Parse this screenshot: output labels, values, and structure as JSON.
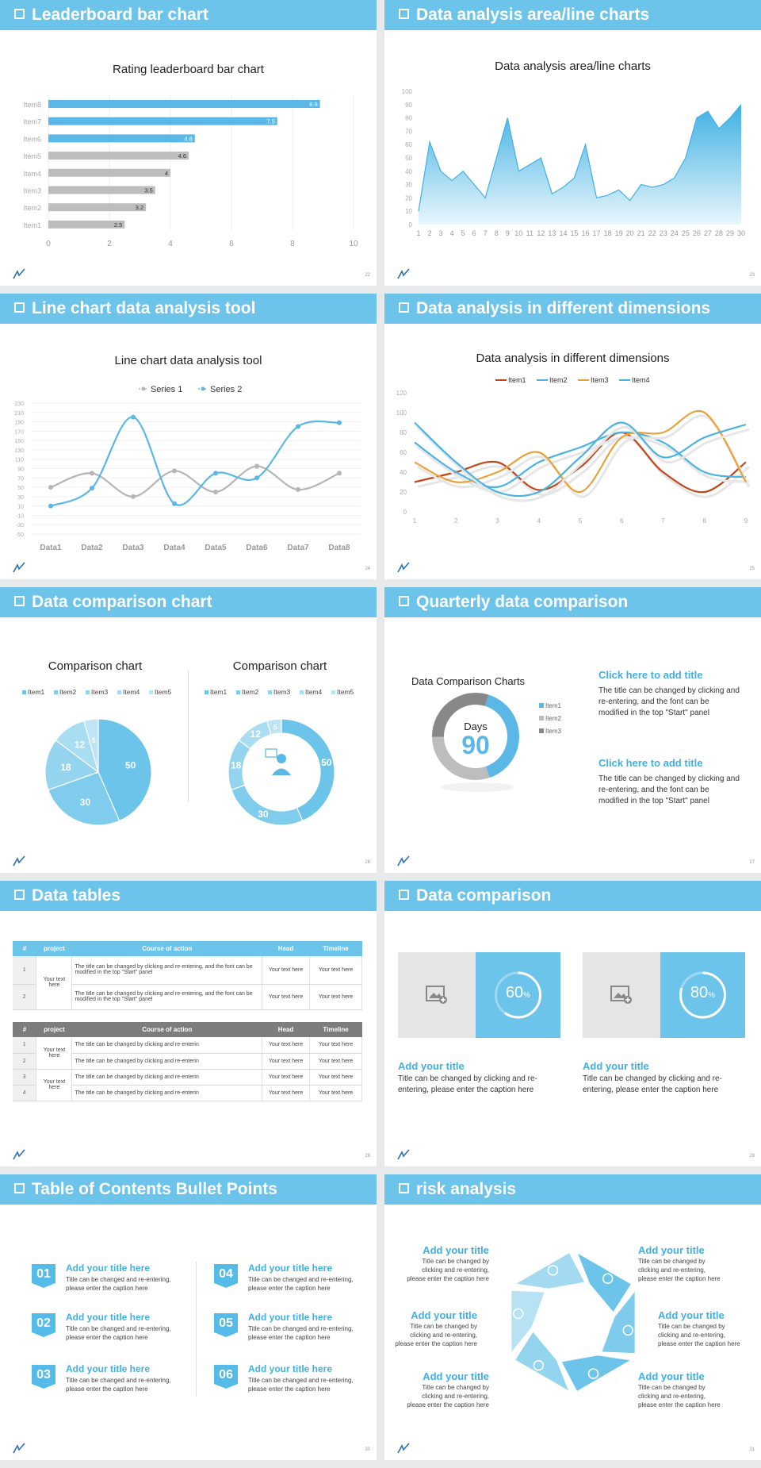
{
  "slides": {
    "s1": {
      "title": "Leaderboard bar chart",
      "page": "22"
    },
    "s2": {
      "title": "Data analysis area/line charts",
      "page": "23"
    },
    "s3": {
      "title": "Line chart data analysis tool",
      "page": "24"
    },
    "s4": {
      "title": "Data analysis in different dimensions",
      "page": "25"
    },
    "s5": {
      "title": "Data comparison chart",
      "page": "26"
    },
    "s6": {
      "title": "Quarterly data comparison",
      "page": "27"
    },
    "s7": {
      "title": "Data tables",
      "page": "28"
    },
    "s8": {
      "title": "Data comparison",
      "page": "29"
    },
    "s9": {
      "title": "Table of Contents Bullet Points",
      "page": "30"
    },
    "s10": {
      "title": "risk analysis",
      "page": "31"
    }
  },
  "chart_data": [
    {
      "type": "bar",
      "title": "Rating leaderboard bar chart",
      "categories": [
        "Item8",
        "Item7",
        "Item6",
        "Item5",
        "Item4",
        "Item3",
        "Item2",
        "Item1"
      ],
      "values": [
        8.9,
        7.5,
        4.8,
        4.6,
        4,
        3.5,
        3.2,
        2.5
      ],
      "value_labels": [
        "8.9",
        "7.5",
        "4.8",
        "4.6",
        "4",
        "3.5",
        "3.2",
        "2.5"
      ],
      "colors": [
        "#5bb8e6",
        "#5bb8e6",
        "#5bb8e6",
        "#bdbdbd",
        "#bdbdbd",
        "#bdbdbd",
        "#bdbdbd",
        "#bdbdbd"
      ],
      "xticks": [
        "0",
        "2",
        "4",
        "6",
        "8",
        "10"
      ],
      "xlim": [
        0,
        10
      ]
    },
    {
      "type": "area",
      "title": "Data analysis area/line charts",
      "x": [
        1,
        2,
        3,
        4,
        5,
        6,
        7,
        8,
        9,
        10,
        11,
        12,
        13,
        14,
        15,
        16,
        17,
        18,
        19,
        20,
        21,
        22,
        23,
        24,
        25,
        26,
        27,
        28,
        29,
        30
      ],
      "values": [
        10,
        62,
        40,
        33,
        40,
        30,
        20,
        50,
        80,
        40,
        45,
        50,
        23,
        28,
        35,
        60,
        20,
        22,
        26,
        18,
        30,
        28,
        30,
        35,
        50,
        80,
        85,
        72,
        80,
        90
      ],
      "yticks": [
        "0",
        "10",
        "20",
        "30",
        "40",
        "50",
        "60",
        "70",
        "80",
        "90",
        "100"
      ],
      "ylim": [
        0,
        100
      ]
    },
    {
      "type": "line",
      "title": "Line chart data analysis tool",
      "categories": [
        "Data1",
        "Data2",
        "Data3",
        "Data4",
        "Data5",
        "Data6",
        "Data7",
        "Data8"
      ],
      "series": [
        {
          "name": "Series 1",
          "values": [
            50,
            80,
            30,
            85,
            40,
            95,
            45,
            80
          ],
          "color": "#b5b5b5"
        },
        {
          "name": "Series 2",
          "values": [
            10,
            48,
            200,
            15,
            80,
            70,
            180,
            188
          ],
          "color": "#5bb8e6"
        }
      ],
      "yticks": [
        "230",
        "210",
        "190",
        "170",
        "150",
        "130",
        "110",
        "90",
        "70",
        "50",
        "30",
        "10",
        "-10",
        "-30",
        "-50"
      ],
      "ylim": [
        -50,
        230
      ]
    },
    {
      "type": "line",
      "title": "Data analysis in different dimensions",
      "x": [
        "1",
        "2",
        "3",
        "4",
        "5",
        "6",
        "7",
        "8",
        "9"
      ],
      "series": [
        {
          "name": "Item1",
          "values": [
            30,
            40,
            50,
            22,
            45,
            80,
            40,
            20,
            50
          ],
          "color": "#c0461b"
        },
        {
          "name": "Item2",
          "values": [
            70,
            40,
            25,
            50,
            65,
            80,
            70,
            40,
            35
          ],
          "color": "#4ab3e0"
        },
        {
          "name": "Item3",
          "values": [
            50,
            30,
            40,
            60,
            20,
            75,
            80,
            100,
            30
          ],
          "color": "#e8a23a"
        },
        {
          "name": "Item4",
          "values": [
            90,
            50,
            20,
            20,
            55,
            90,
            55,
            75,
            88
          ],
          "color": "#4ab3e0"
        }
      ],
      "yticks": [
        "0",
        "20",
        "40",
        "60",
        "80",
        "100",
        "120"
      ],
      "ylim": [
        0,
        120
      ]
    },
    {
      "type": "pie",
      "title": "Comparison chart",
      "categories": [
        "Item1",
        "Item2",
        "Item3",
        "Item4",
        "Item5"
      ],
      "values": [
        50,
        30,
        18,
        12,
        5
      ]
    },
    {
      "type": "pie",
      "title": "Comparison chart",
      "categories": [
        "Item1",
        "Item2",
        "Item3",
        "Item4",
        "Item5"
      ],
      "values": [
        50,
        30,
        18,
        12,
        5
      ],
      "donut": true
    },
    {
      "type": "pie",
      "title": "Data Comparison Charts",
      "categories": [
        "Item1",
        "Item2",
        "Item3"
      ],
      "values": [
        40,
        30,
        30
      ],
      "colors": [
        "#5bb8e6",
        "#bdbdbd",
        "#888888"
      ],
      "center_label": "Days",
      "center_value": "90",
      "donut": true
    }
  ],
  "s6_text": {
    "t1": "Click here to add title",
    "c1": "The title can be changed by clicking and re-entering, and the font can be modified in the top \"Start\" panel",
    "t2": "Click here to add title",
    "c2": "The title can be changed by clicking and re-entering, and the font can be modified in the top \"Start\" panel"
  },
  "tables": {
    "headers": [
      "#",
      "project",
      "Course of action",
      "Head",
      "Timeline"
    ],
    "t1": {
      "project": "Your text here",
      "rows": [
        {
          "n": "1",
          "action": "The title can be changed by clicking and re-entering, and the font can be modified in the top \"Start\" panel",
          "head": "Your text here",
          "timeline": "Your text here"
        },
        {
          "n": "2",
          "action": "The title can be changed by clicking and re-entering, and the font can be modified in the top \"Start\" panel",
          "head": "Your text here",
          "timeline": "Your text here"
        }
      ]
    },
    "t2": {
      "project": "Your text here",
      "project2": "Your text here",
      "rows": [
        {
          "n": "1",
          "action": "The title can be changed by clicking and re-enterin",
          "head": "Your text here",
          "timeline": "Your text here"
        },
        {
          "n": "2",
          "action": "The title can be changed by clicking and re-enterin",
          "head": "Your text here",
          "timeline": "Your text here"
        },
        {
          "n": "3",
          "action": "The title can be changed by clicking and re-enterin",
          "head": "Your text here",
          "timeline": "Your text here"
        },
        {
          "n": "4",
          "action": "The title can be changed by clicking and re-enterin",
          "head": "Your text here",
          "timeline": "Your text here"
        }
      ]
    }
  },
  "s8": {
    "cards": [
      {
        "percent": "60",
        "unit": "%",
        "progress": 0.6,
        "title": "Add your title",
        "caption": "Title can be changed by clicking and re-entering, please enter the caption here"
      },
      {
        "percent": "80",
        "unit": "%",
        "progress": 0.8,
        "title": "Add your title",
        "caption": "Title can be changed by clicking and re-entering, please enter the caption here"
      }
    ]
  },
  "s9": {
    "items": [
      {
        "num": "01",
        "title": "Add your title here",
        "caption": "Title can be changed and re-entering, please enter the caption here"
      },
      {
        "num": "02",
        "title": "Add your title here",
        "caption": "Title can be changed and re-entering, please enter the caption here"
      },
      {
        "num": "03",
        "title": "Add your title here",
        "caption": "Title can be changed and re-entering, please enter the caption here"
      },
      {
        "num": "04",
        "title": "Add your title here",
        "caption": "Title can be changed and re-entering, please enter the caption here"
      },
      {
        "num": "05",
        "title": "Add your title here",
        "caption": "Title can be changed and re-entering, please enter the caption here"
      },
      {
        "num": "06",
        "title": "Add your title here",
        "caption": "Title can be changed and re-entering, please enter the caption here"
      }
    ]
  },
  "s10": {
    "items": [
      {
        "title": "Add your title",
        "caption": "Title can be changed by clicking and re-entering, please enter the caption here"
      },
      {
        "title": "Add your title",
        "caption": "Title can be changed by clicking and re-entering, please enter the caption here"
      },
      {
        "title": "Add your title",
        "caption": "Title can be changed by clicking and re-entering, please enter the caption here"
      },
      {
        "title": "Add your title",
        "caption": "Title can be changed by clicking and re-entering, please enter the caption here"
      },
      {
        "title": "Add your title",
        "caption": "Title can be changed by clicking and re-entering, please enter the caption here"
      },
      {
        "title": "Add your title",
        "caption": "Title can be changed by clicking and re-entering, please enter the caption here"
      }
    ]
  },
  "colors": {
    "accent": "#6cc4ea",
    "accent_dark": "#3fb0e3",
    "gray": "#bdbdbd"
  }
}
